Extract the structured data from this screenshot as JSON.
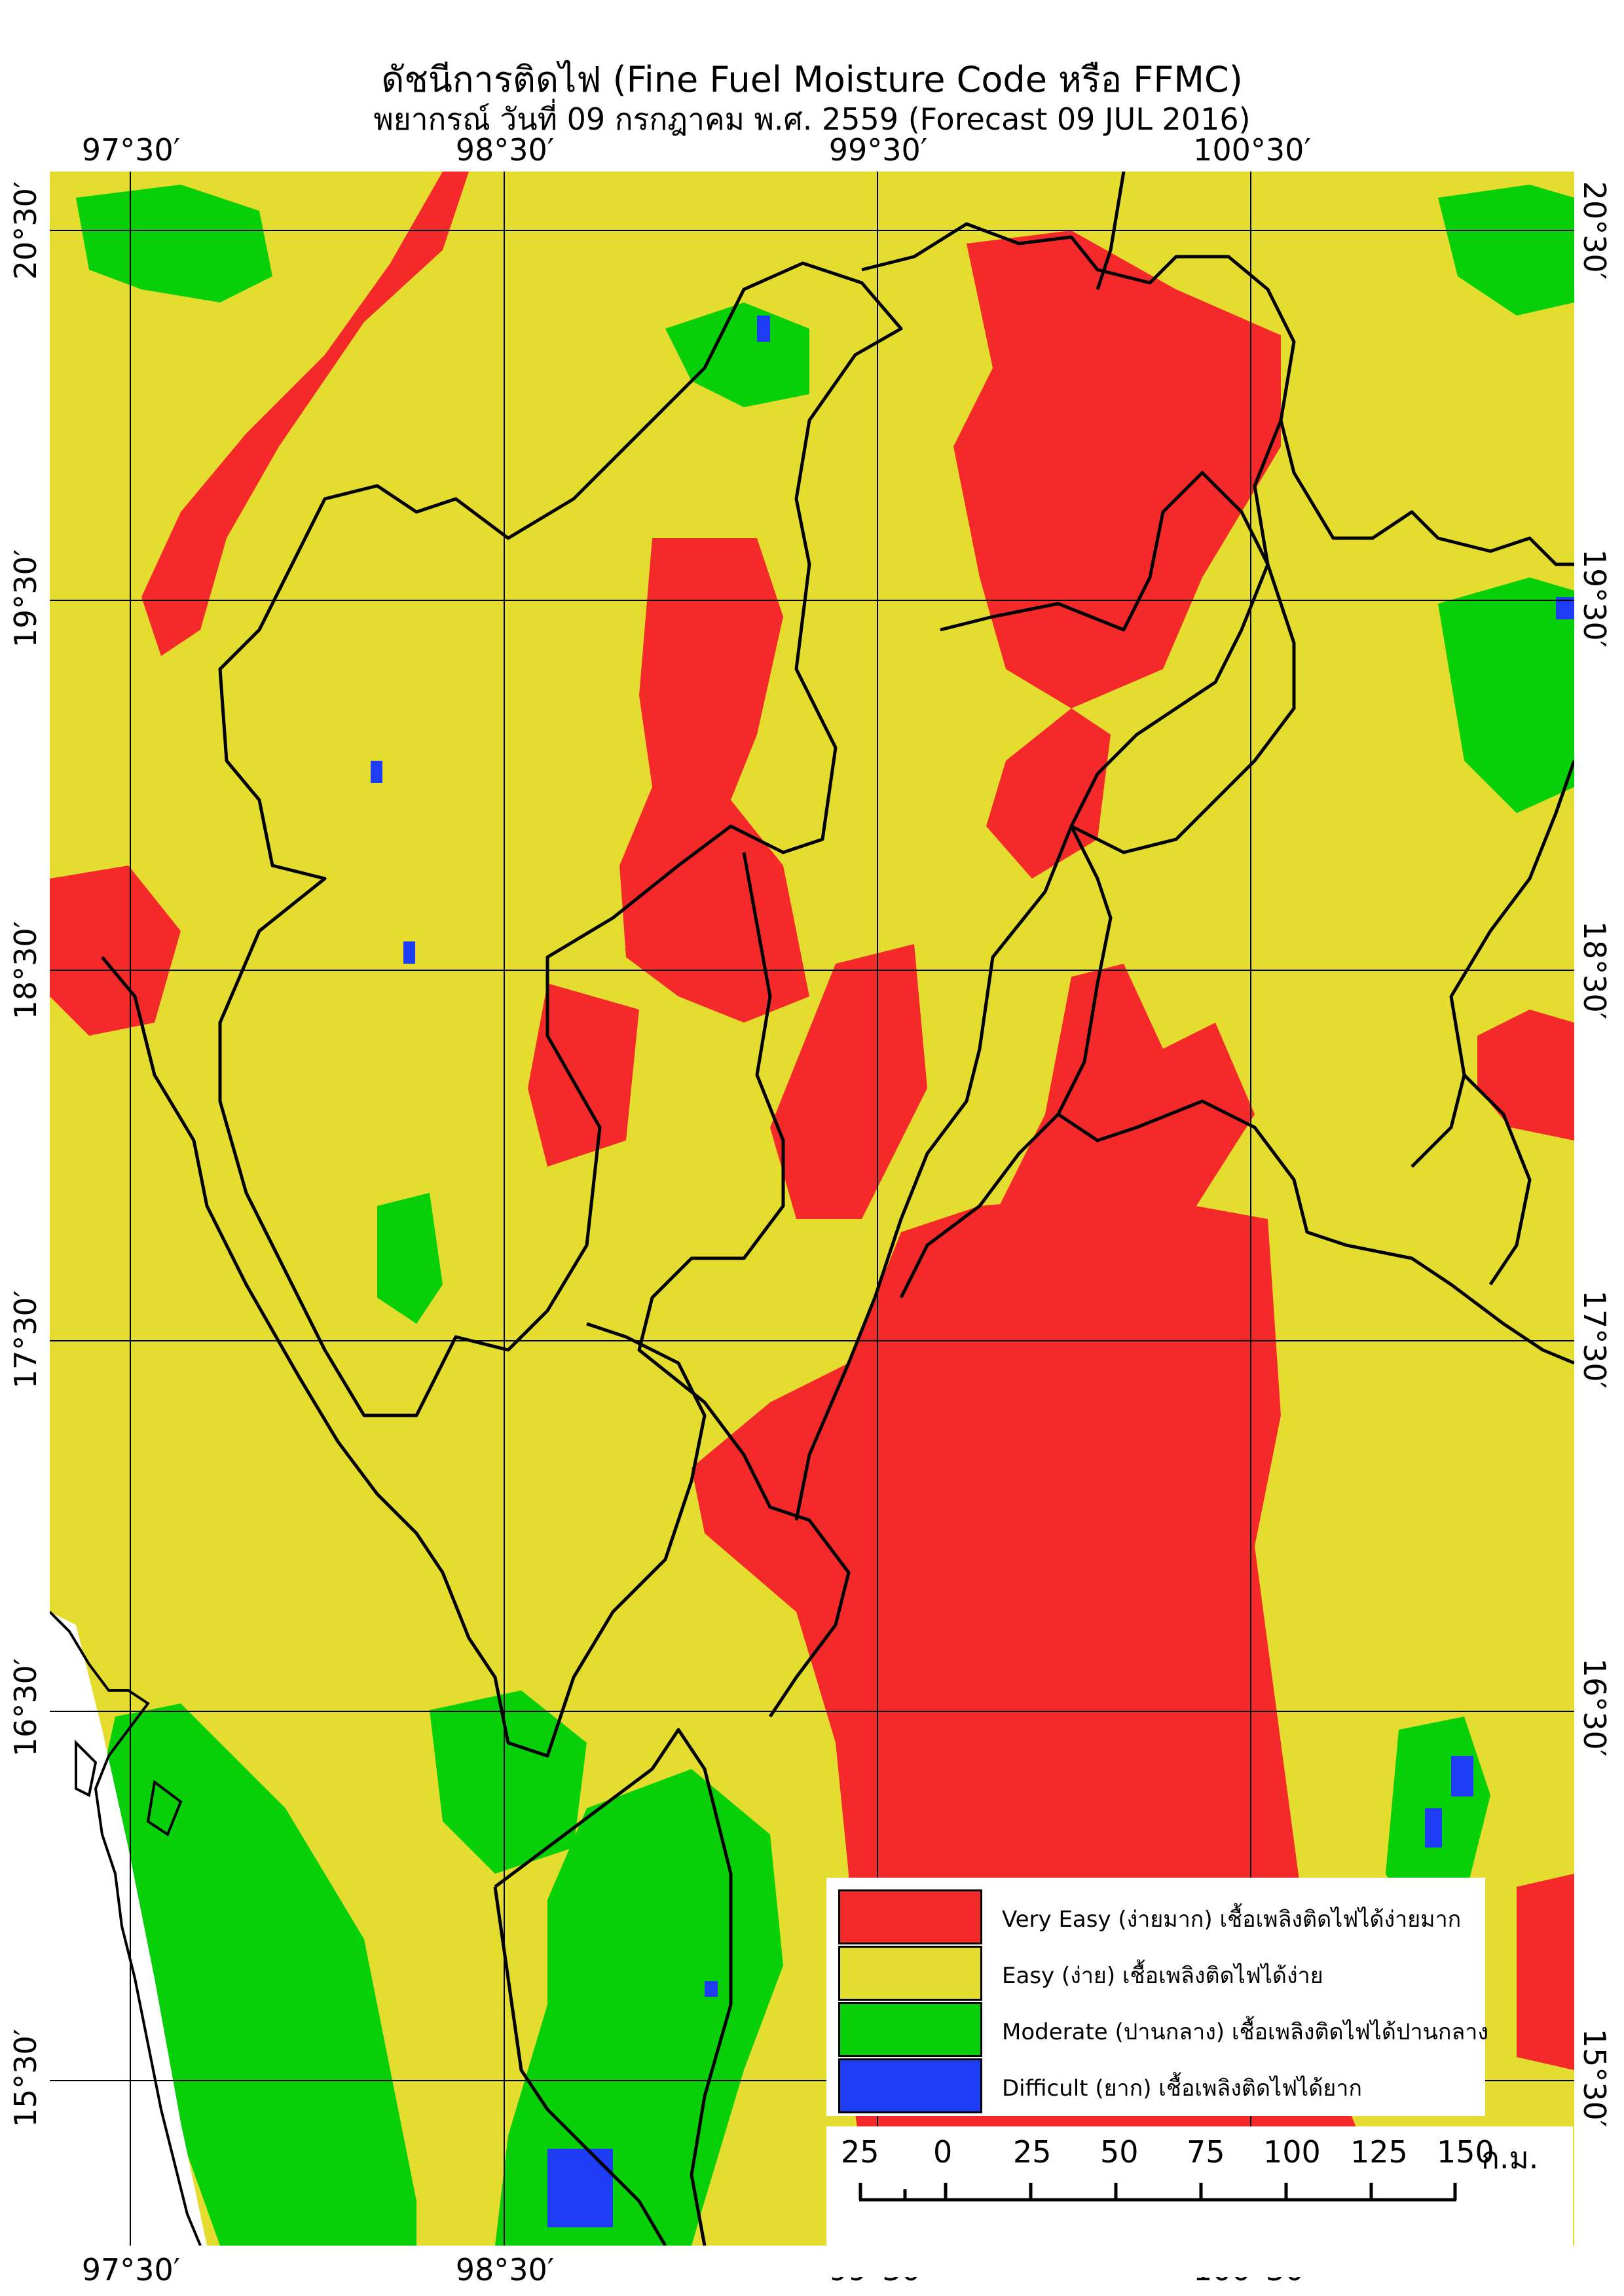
{
  "title": "ดัชนีการติดไฟ (Fine Fuel Moisture Code หรือ FFMC)",
  "subtitle": "พยากรณ์ วันที่ 09 กรกฎาคม พ.ศ. 2559 (Forecast 09 JUL 2016)",
  "longitude_labels": [
    "97°30′",
    "98°30′",
    "99°30′",
    "100°30′"
  ],
  "latitude_labels": [
    "20°30′",
    "19°30′",
    "18°30′",
    "17°30′",
    "16°30′",
    "15°30′"
  ],
  "map_extent": {
    "lon_min": 97.25,
    "lon_max": 101.3,
    "lat_max": 20.7,
    "lat_min": 15.1
  },
  "colors": {
    "very_easy": "#f42a2a",
    "easy": "#e5dc30",
    "moderate": "#08d008",
    "difficult": "#1f3cf5",
    "boundary": "#000000",
    "sea": "#ffffff"
  },
  "legend": [
    {
      "key": "very_easy",
      "label": "Very Easy (ง่ายมาก) เชื้อเพลิงติดไฟได้ง่ายมาก"
    },
    {
      "key": "easy",
      "label": "Easy (ง่าย) เชื้อเพลิงติดไฟได้ง่าย"
    },
    {
      "key": "moderate",
      "label": "Moderate (ปานกลาง) เชื้อเพลิงติดไฟได้ปานกลาง"
    },
    {
      "key": "difficult",
      "label": "Difficult (ยาก) เชื้อเพลิงติดไฟได้ยาก"
    }
  ],
  "scale_bar": {
    "labels": [
      "25",
      "0",
      "25",
      "50",
      "75",
      "100",
      "125",
      "150"
    ],
    "unit": "ก.ม."
  }
}
